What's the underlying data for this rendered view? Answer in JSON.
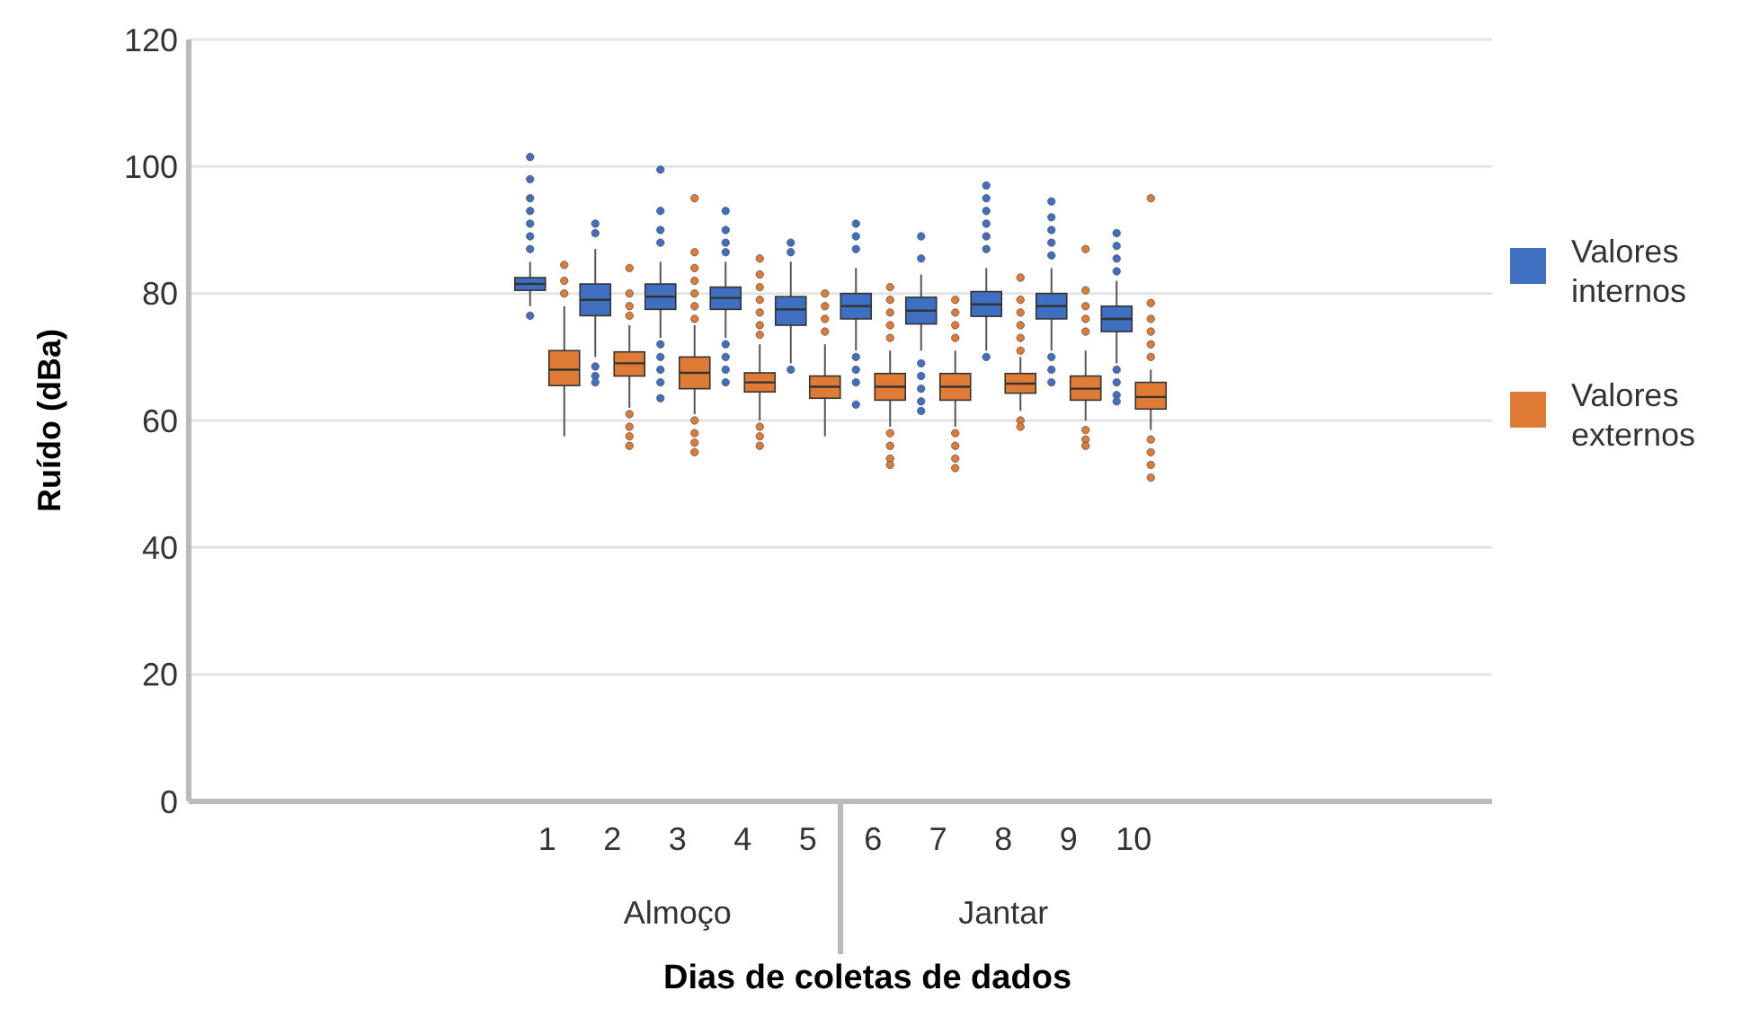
{
  "chart_data": {
    "type": "box",
    "xlabel": "Dias de coletas de dados",
    "ylabel": "Ruído (dBa)",
    "categories": [
      null,
      null,
      null,
      null,
      null,
      "1",
      "2",
      "3",
      "4",
      "5",
      "6",
      "7",
      "8",
      "9",
      "10",
      null,
      null,
      null,
      null,
      null
    ],
    "annotations": [
      "Almoço",
      "Jantar"
    ],
    "ylim": [
      0,
      120
    ],
    "yticks": [
      0,
      20,
      40,
      60,
      80,
      100,
      120
    ],
    "grid": "y",
    "legend": "right",
    "series": [
      {
        "name": "Valores internos",
        "color": "#3e6fc0",
        "boxes": [
          null,
          null,
          null,
          null,
          null,
          {
            "low": 78,
            "q1": 80.5,
            "median": 81.5,
            "q3": 82.5,
            "high": 85,
            "outliers": [
              101.5,
              98,
              95,
              93,
              91,
              89,
              87,
              76.5
            ]
          },
          {
            "low": 70,
            "q1": 76.5,
            "median": 79,
            "q3": 81.5,
            "high": 87,
            "outliers": [
              91,
              89.5,
              68.5,
              67,
              66
            ]
          },
          {
            "low": 73,
            "q1": 77.5,
            "median": 79.5,
            "q3": 81.5,
            "high": 85,
            "outliers": [
              99.5,
              93,
              90,
              88,
              72,
              70,
              68,
              66,
              63.5
            ]
          },
          {
            "low": 73,
            "q1": 77.5,
            "median": 79.3,
            "q3": 81,
            "high": 85,
            "outliers": [
              93,
              90,
              88,
              86.5,
              72,
              70,
              68,
              66
            ]
          },
          {
            "low": 69,
            "q1": 75,
            "median": 77.5,
            "q3": 79.5,
            "high": 85,
            "outliers": [
              88,
              86.5,
              68
            ]
          },
          {
            "low": 71,
            "q1": 76,
            "median": 78,
            "q3": 80,
            "high": 84,
            "outliers": [
              91,
              89,
              87,
              70,
              68,
              66,
              62.5
            ]
          },
          {
            "low": 71,
            "q1": 75.2,
            "median": 77.3,
            "q3": 79.4,
            "high": 83,
            "outliers": [
              89,
              85.5,
              69,
              67,
              65,
              63,
              61.5
            ]
          },
          {
            "low": 71,
            "q1": 76.4,
            "median": 78.3,
            "q3": 80.3,
            "high": 84,
            "outliers": [
              97,
              95,
              93,
              91,
              89,
              87,
              70
            ]
          },
          {
            "low": 71,
            "q1": 76,
            "median": 78,
            "q3": 80,
            "high": 84,
            "outliers": [
              94.5,
              92,
              90,
              88,
              86,
              70,
              68,
              66
            ]
          },
          {
            "low": 69,
            "q1": 74,
            "median": 76,
            "q3": 78,
            "high": 82,
            "outliers": [
              89.5,
              87.5,
              85.5,
              83.5,
              68,
              66,
              64,
              63
            ]
          },
          null,
          null,
          null,
          null,
          null
        ]
      },
      {
        "name": "Valores externos",
        "color": "#e07b35",
        "boxes": [
          null,
          null,
          null,
          null,
          null,
          {
            "low": 57.5,
            "q1": 65.5,
            "median": 68,
            "q3": 71,
            "high": 78,
            "outliers": [
              84.5,
              82,
              80
            ]
          },
          {
            "low": 62,
            "q1": 67,
            "median": 69,
            "q3": 70.8,
            "high": 75,
            "outliers": [
              84,
              80,
              78,
              76.5,
              61,
              59,
              57.5,
              56
            ]
          },
          {
            "low": 61,
            "q1": 65,
            "median": 67.5,
            "q3": 70,
            "high": 75,
            "outliers": [
              95,
              86.5,
              84,
              82,
              80,
              78,
              76,
              60,
              58,
              56.5,
              55
            ]
          },
          {
            "low": 60,
            "q1": 64.5,
            "median": 66,
            "q3": 67.5,
            "high": 72,
            "outliers": [
              85.5,
              83,
              81,
              79,
              77,
              75,
              73.5,
              59,
              57.5,
              56
            ]
          },
          {
            "low": 57.5,
            "q1": 63.5,
            "median": 65.3,
            "q3": 67,
            "high": 72,
            "outliers": [
              80,
              78,
              76,
              74
            ]
          },
          {
            "low": 59,
            "q1": 63.2,
            "median": 65.3,
            "q3": 67.4,
            "high": 71,
            "outliers": [
              81,
              79,
              77,
              75,
              73,
              58,
              56,
              54,
              53
            ]
          },
          {
            "low": 59,
            "q1": 63.2,
            "median": 65.3,
            "q3": 67.4,
            "high": 71,
            "outliers": [
              79,
              77,
              75,
              73,
              58,
              56,
              54,
              52.5
            ]
          },
          {
            "low": 61.5,
            "q1": 64.3,
            "median": 65.8,
            "q3": 67.4,
            "high": 70,
            "outliers": [
              82.5,
              79,
              77,
              75,
              73,
              71,
              60,
              59
            ]
          },
          {
            "low": 60,
            "q1": 63.2,
            "median": 65,
            "q3": 67,
            "high": 71,
            "outliers": [
              87,
              80.5,
              78,
              76,
              74,
              58.5,
              57,
              56
            ]
          },
          {
            "low": 58.5,
            "q1": 61.8,
            "median": 63.7,
            "q3": 66,
            "high": 68,
            "outliers": [
              95,
              78.5,
              76,
              74,
              72,
              70,
              57,
              55,
              53,
              51
            ]
          },
          null,
          null,
          null,
          null,
          null
        ]
      }
    ]
  }
}
